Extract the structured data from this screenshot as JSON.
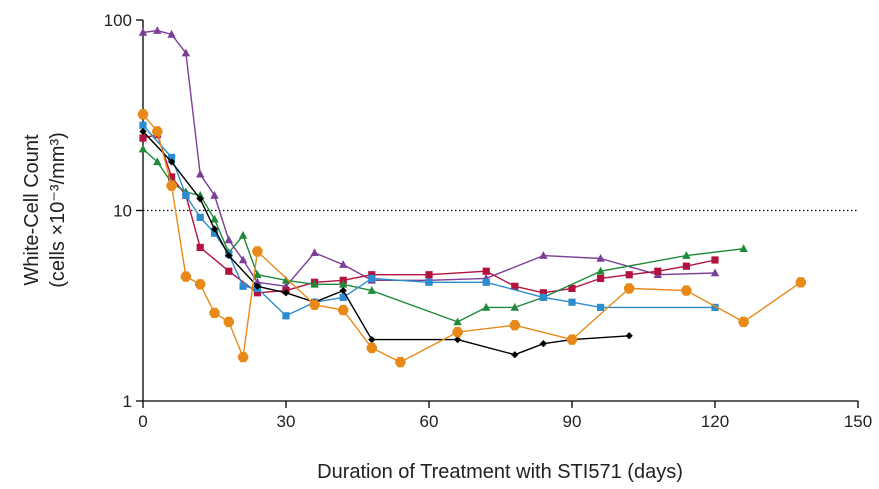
{
  "chart_data": {
    "type": "line",
    "xlabel": "Duration of Treatment with STI571 (days)",
    "ylabel_line1": "White-Cell Count",
    "ylabel_line2": "(cells ×10⁻³/mm³)",
    "xlim": [
      0,
      150
    ],
    "ylim": [
      1,
      100
    ],
    "yscale": "log",
    "x_ticks": [
      0,
      30,
      60,
      90,
      120,
      150
    ],
    "x_tick_labels": [
      "0",
      "30",
      "60",
      "90",
      "120",
      "150"
    ],
    "y_ticks": [
      1,
      10,
      100
    ],
    "y_tick_labels": [
      "1",
      "10",
      "100"
    ],
    "reference_line": {
      "y": 10,
      "style": "dotted"
    },
    "grid": false,
    "legend": "none",
    "series": [
      {
        "color": "#7b3f98",
        "marker": "triangle",
        "x": [
          0,
          3,
          6,
          9,
          12,
          15,
          18,
          21,
          24,
          30,
          36,
          42,
          48,
          60,
          72,
          84,
          96,
          108,
          120
        ],
        "y": [
          86,
          88,
          84,
          67,
          15.5,
          12,
          7,
          5.5,
          4.2,
          4,
          6,
          5.2,
          4.3,
          4.3,
          4.4,
          5.8,
          5.6,
          4.6,
          4.7
        ]
      },
      {
        "color": "#b3123e",
        "marker": "square",
        "x": [
          0,
          3,
          6,
          9,
          12,
          18,
          24,
          30,
          36,
          42,
          48,
          60,
          72,
          78,
          84,
          90,
          96,
          102,
          108,
          114,
          120
        ],
        "y": [
          24,
          25,
          15,
          12,
          6.4,
          4.8,
          3.7,
          3.8,
          4.2,
          4.3,
          4.6,
          4.6,
          4.8,
          4,
          3.7,
          3.9,
          4.4,
          4.6,
          4.8,
          5.1,
          5.5
        ]
      },
      {
        "color": "#1f8a3a",
        "marker": "triangle",
        "x": [
          0,
          3,
          6,
          9,
          12,
          15,
          18,
          21,
          24,
          30,
          36,
          42,
          48,
          66,
          72,
          78,
          84,
          96,
          114,
          126
        ],
        "y": [
          21,
          18,
          14,
          12.5,
          12,
          9,
          6,
          7.4,
          4.6,
          4.3,
          4.1,
          4.1,
          3.8,
          2.6,
          3.1,
          3.1,
          3.5,
          4.8,
          5.8,
          6.3
        ]
      },
      {
        "color": "#2b8ccf",
        "marker": "square",
        "x": [
          0,
          6,
          9,
          12,
          15,
          18,
          21,
          24,
          30,
          36,
          42,
          48,
          60,
          72,
          84,
          90,
          96,
          120
        ],
        "y": [
          28,
          19,
          12,
          9.2,
          7.6,
          5.9,
          4,
          3.9,
          2.8,
          3.3,
          3.5,
          4.4,
          4.2,
          4.2,
          3.5,
          3.3,
          3.1,
          3.1
        ]
      },
      {
        "color": "#000000",
        "marker": "diamond",
        "x": [
          0,
          6,
          12,
          15,
          18,
          24,
          30,
          36,
          42,
          48,
          66,
          78,
          84,
          90,
          102
        ],
        "y": [
          26,
          18,
          11.5,
          8,
          5.8,
          4,
          3.7,
          3.3,
          3.8,
          2.1,
          2.1,
          1.75,
          2,
          2.1,
          2.2
        ]
      },
      {
        "color": "#e88a1a",
        "marker": "circle",
        "x": [
          0,
          3,
          6,
          9,
          12,
          15,
          18,
          21,
          24,
          36,
          42,
          48,
          54,
          66,
          78,
          90,
          102,
          114,
          126,
          138
        ],
        "y": [
          32,
          26,
          13.5,
          4.5,
          4.1,
          2.9,
          2.6,
          1.7,
          6.1,
          3.2,
          3,
          1.9,
          1.6,
          2.3,
          2.5,
          2.1,
          3.9,
          3.8,
          2.6,
          4.2
        ]
      }
    ]
  }
}
